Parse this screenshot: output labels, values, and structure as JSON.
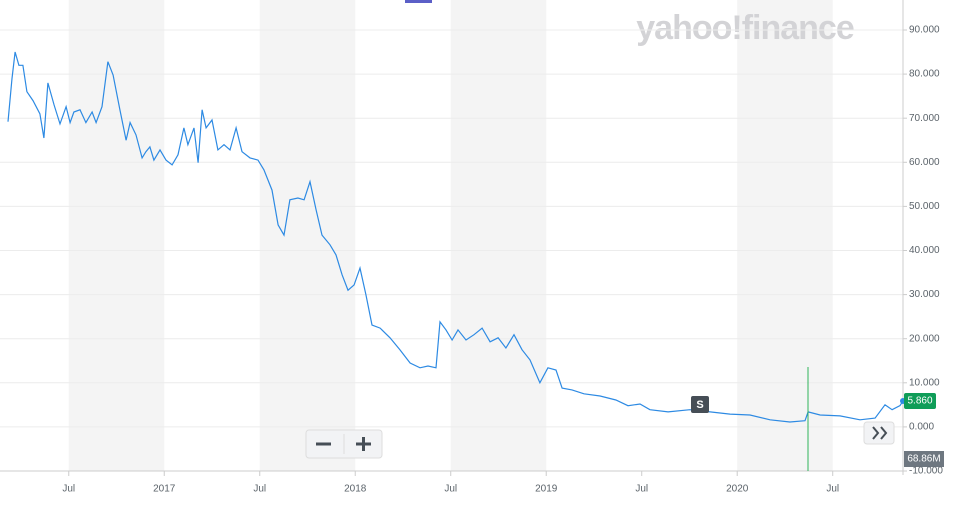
{
  "logo": "yahoo!finance",
  "chart_data": {
    "type": "line",
    "x": [
      2016.182,
      2016.203,
      2016.219,
      2016.239,
      2016.26,
      2016.281,
      2016.313,
      2016.349,
      2016.37,
      2016.391,
      2016.423,
      2016.454,
      2016.486,
      2016.507,
      2016.527,
      2016.559,
      2016.59,
      2016.622,
      2016.643,
      2016.674,
      2016.705,
      2016.732,
      2016.768,
      2016.8,
      2016.821,
      2016.852,
      2016.884,
      2016.904,
      2016.925,
      2016.946,
      2016.978,
      2017.009,
      2017.041,
      2017.072,
      2017.103,
      2017.124,
      2017.156,
      2017.177,
      2017.198,
      2017.219,
      2017.25,
      2017.281,
      2017.313,
      2017.344,
      2017.376,
      2017.407,
      2017.449,
      2017.491,
      2017.522,
      2017.564,
      2017.596,
      2017.627,
      2017.658,
      2017.7,
      2017.732,
      2017.763,
      2017.795,
      2017.826,
      2017.868,
      2017.899,
      2017.931,
      2017.962,
      2017.994,
      2018.025,
      2018.056,
      2018.088,
      2018.13,
      2018.182,
      2018.234,
      2018.287,
      2018.339,
      2018.381,
      2018.423,
      2018.444,
      2018.475,
      2018.507,
      2018.538,
      2018.58,
      2018.622,
      2018.664,
      2018.706,
      2018.748,
      2018.789,
      2018.831,
      2018.873,
      2018.915,
      2018.967,
      2019.009,
      2019.051,
      2019.083,
      2019.135,
      2019.198,
      2019.282,
      2019.365,
      2019.428,
      2019.491,
      2019.543,
      2019.638,
      2019.753,
      2019.858,
      2019.962,
      2020.067,
      2020.172,
      2020.276,
      2020.355,
      2020.371,
      2020.434,
      2020.538,
      2020.643,
      2020.722,
      2020.774,
      2020.811,
      2020.852,
      2020.868
    ],
    "series": [
      {
        "color": "#2d8ae3",
        "values": [
          69.2,
          79,
          85,
          82,
          82,
          76,
          74,
          71,
          65.5,
          78,
          73,
          68.7,
          72.6,
          69,
          71.4,
          71.9,
          69,
          71.4,
          69,
          72.6,
          82.8,
          79.8,
          71.9,
          65,
          69,
          66.2,
          61,
          62.4,
          63.5,
          60.5,
          62.8,
          60.5,
          59.4,
          61.7,
          67.8,
          64,
          67.8,
          59.9,
          71.9,
          67.8,
          69.6,
          62.8,
          64,
          62.8,
          67.8,
          62.4,
          61,
          60.5,
          58.3,
          53.7,
          45.8,
          43.5,
          51.5,
          51.9,
          51.5,
          55.6,
          49.2,
          43.5,
          41.3,
          39,
          34.5,
          31,
          32.2,
          36,
          30,
          23.1,
          22.4,
          20.2,
          17.5,
          14.5,
          13.4,
          13.8,
          13.4,
          23.8,
          22,
          19.7,
          22,
          19.7,
          20.9,
          22.4,
          19.3,
          20.2,
          17.9,
          20.9,
          17.5,
          15.2,
          10,
          13.4,
          12.9,
          8.8,
          8.4,
          7.5,
          7,
          6.1,
          4.8,
          5.2,
          3.9,
          3.4,
          3.9,
          3.4,
          2.9,
          2.7,
          1.6,
          1.1,
          1.4,
          3.4,
          2.7,
          2.5,
          1.6,
          2,
          5,
          3.9,
          4.8,
          5.86
        ]
      }
    ],
    "last_price_label": "5.860",
    "volume_label": "68.86M",
    "marker_label": "S",
    "xlim": [
      2016.14,
      2020.868
    ],
    "xticks": [
      {
        "value": 2016.5,
        "label": "Jul"
      },
      2017,
      {
        "value": 2017.5,
        "label": "Jul"
      },
      2018,
      {
        "value": 2018.5,
        "label": "Jul"
      },
      2019,
      {
        "value": 2019.5,
        "label": "Jul"
      },
      2020,
      {
        "value": 2020.5,
        "label": "Jul"
      }
    ],
    "ylim": [
      -10,
      96.8
    ],
    "yticks": [
      {
        "value": -10,
        "label": "-10.000"
      },
      {
        "value": 0,
        "label": "0.000"
      },
      {
        "value": 10,
        "label": "10.000"
      },
      {
        "value": 20,
        "label": "20.000"
      },
      {
        "value": 30,
        "label": "30.000"
      },
      {
        "value": 40,
        "label": "40.000"
      },
      {
        "value": 50,
        "label": "50.000"
      },
      {
        "value": 60,
        "label": "60.000"
      },
      {
        "value": 70,
        "label": "70.000"
      },
      {
        "value": 80,
        "label": "80.000"
      },
      {
        "value": 90,
        "label": "90.000"
      }
    ],
    "grid": true
  }
}
